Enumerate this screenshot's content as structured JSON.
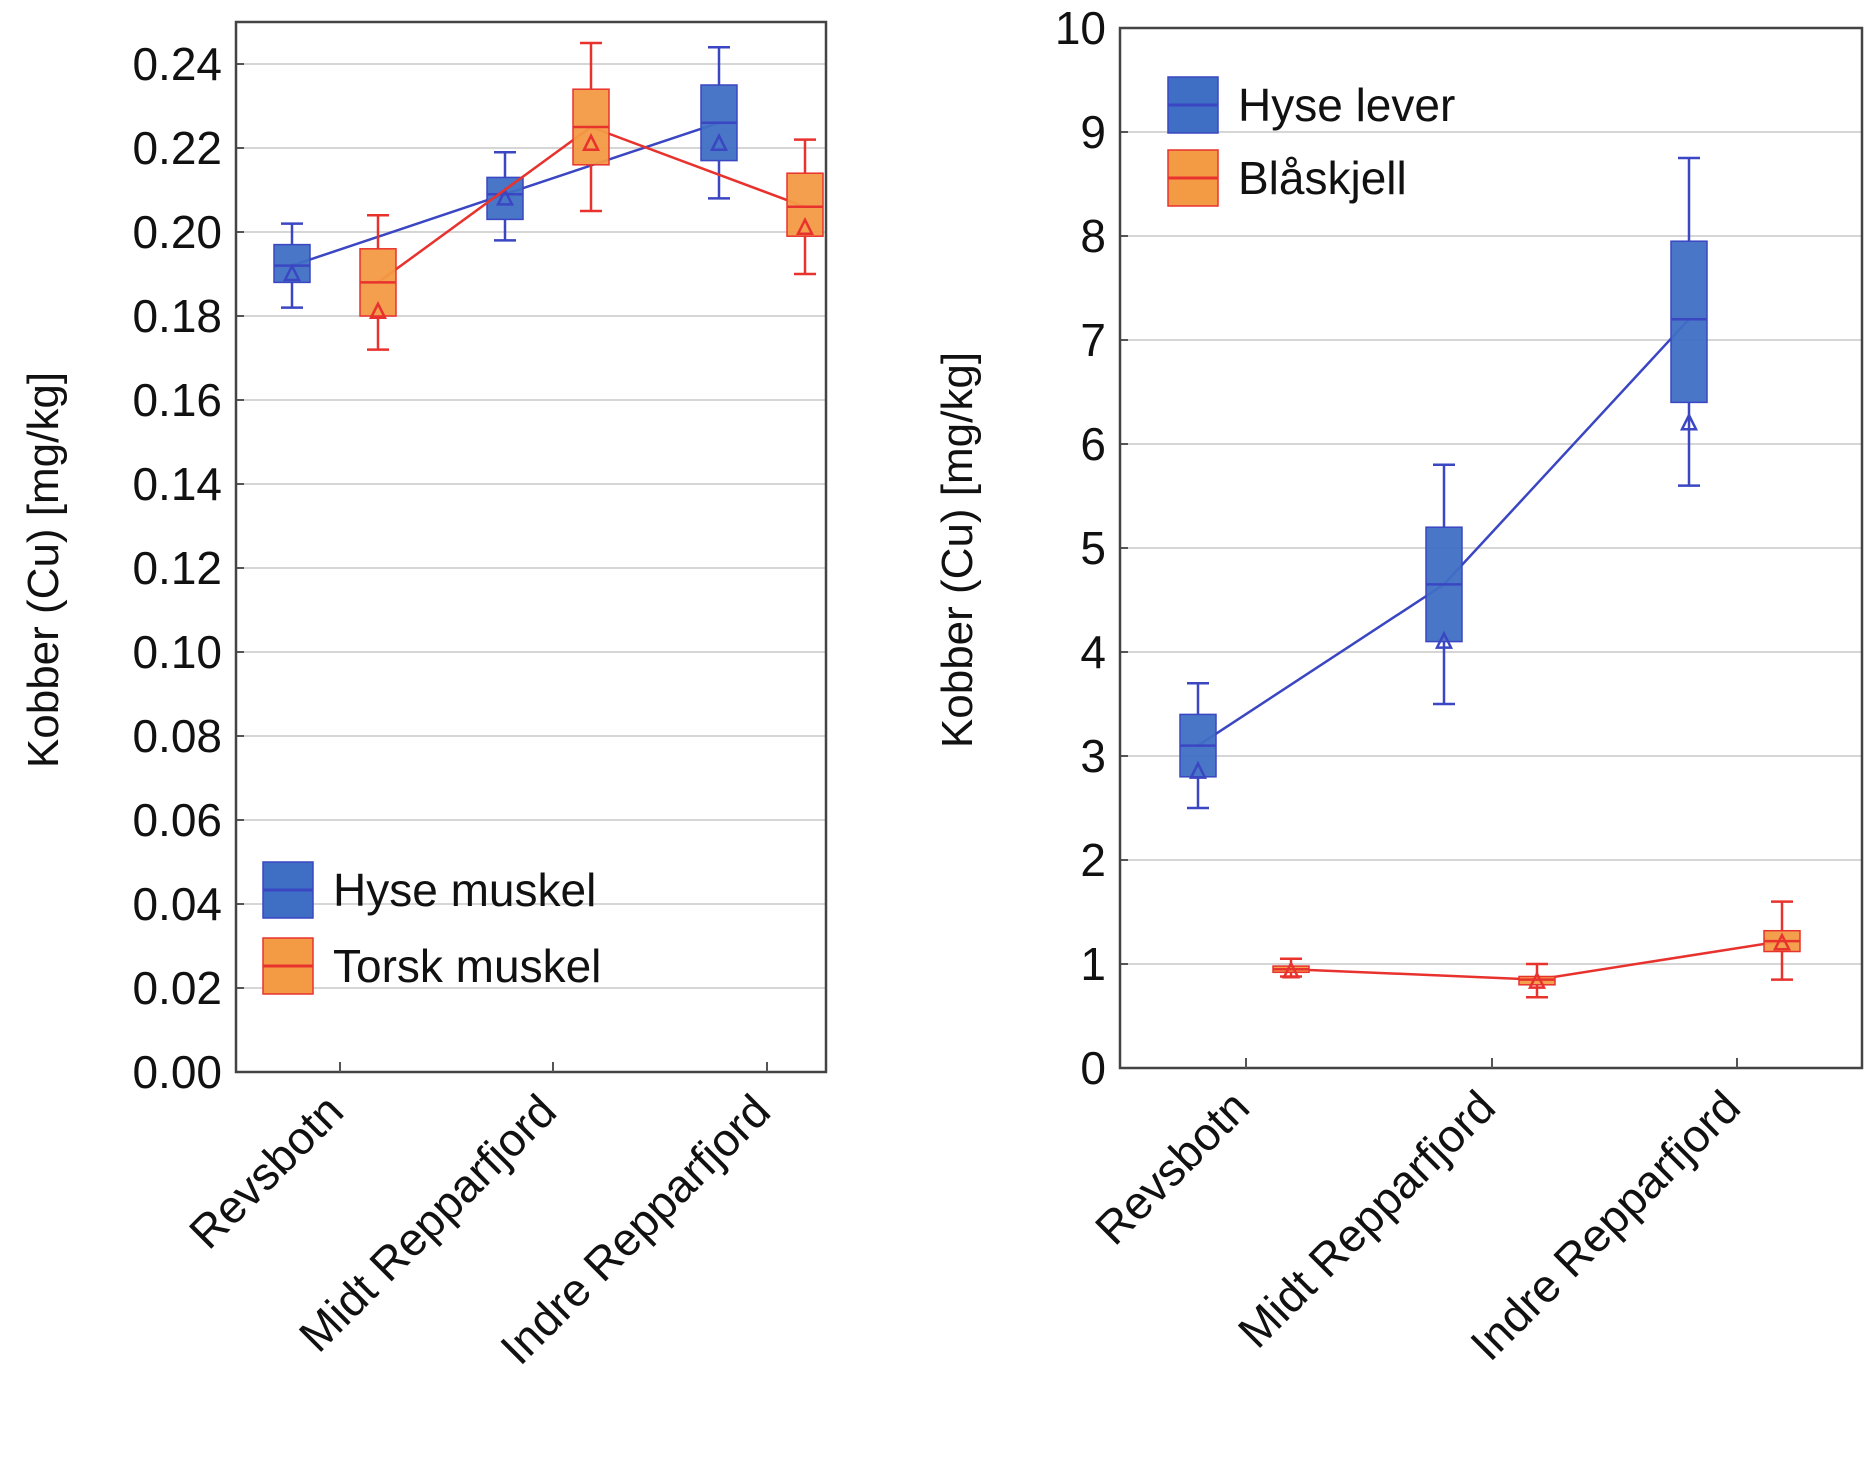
{
  "chart_data": [
    {
      "type": "box",
      "xlabel": "",
      "ylabel": "Kobber (Cu) [mg/kg]",
      "ylim": [
        0,
        0.25
      ],
      "yticks": [
        "0.00",
        "0.02",
        "0.04",
        "0.06",
        "0.08",
        "0.10",
        "0.12",
        "0.14",
        "0.16",
        "0.18",
        "0.20",
        "0.22",
        "0.24"
      ],
      "categories": [
        "Revsbotn",
        "Midt Repparfjord",
        "Indre Repparfjord"
      ],
      "grid": true,
      "legend_position": "bottom-left",
      "series": [
        {
          "name": "Hyse muskel",
          "color": "#3f6fc4",
          "line_color": "#3a46c2",
          "median": [
            0.192,
            0.209,
            0.226
          ],
          "q1": [
            0.188,
            0.203,
            0.217
          ],
          "q3": [
            0.197,
            0.213,
            0.235
          ],
          "whisker_low": [
            0.182,
            0.198,
            0.208
          ],
          "whisker_high": [
            0.202,
            0.219,
            0.244
          ],
          "mean": [
            0.19,
            0.208,
            0.221
          ]
        },
        {
          "name": "Torsk muskel",
          "color": "#f39a45",
          "line_color": "#e8322e",
          "median": [
            0.188,
            0.225,
            0.206
          ],
          "q1": [
            0.18,
            0.216,
            0.199
          ],
          "q3": [
            0.196,
            0.234,
            0.214
          ],
          "whisker_low": [
            0.172,
            0.205,
            0.19
          ],
          "whisker_high": [
            0.204,
            0.245,
            0.222
          ],
          "mean": [
            0.181,
            0.221,
            0.201
          ]
        }
      ]
    },
    {
      "type": "box",
      "xlabel": "",
      "ylabel": "Kobber (Cu) [mg/kg]",
      "ylim": [
        0,
        10
      ],
      "yticks": [
        "0",
        "1",
        "2",
        "3",
        "4",
        "5",
        "6",
        "7",
        "8",
        "9",
        "10"
      ],
      "categories": [
        "Revsbotn",
        "Midt Repparfjord",
        "Indre Repparfjord"
      ],
      "grid": true,
      "legend_position": "top-left",
      "series": [
        {
          "name": "Hyse lever",
          "color": "#3f6fc4",
          "line_color": "#3a46c2",
          "median": [
            3.1,
            4.65,
            7.2
          ],
          "q1": [
            2.8,
            4.1,
            6.4
          ],
          "q3": [
            3.4,
            5.2,
            7.95
          ],
          "whisker_low": [
            2.5,
            3.5,
            5.6
          ],
          "whisker_high": [
            3.7,
            5.8,
            8.75
          ],
          "mean": [
            2.85,
            4.1,
            6.2
          ]
        },
        {
          "name": "Blåskjell",
          "color": "#f39a45",
          "line_color": "#e8322e",
          "median": [
            0.95,
            0.85,
            1.22
          ],
          "q1": [
            0.92,
            0.8,
            1.12
          ],
          "q3": [
            0.98,
            0.88,
            1.32
          ],
          "whisker_low": [
            0.88,
            0.68,
            0.85
          ],
          "whisker_high": [
            1.05,
            1.0,
            1.6
          ],
          "mean": [
            0.93,
            0.83,
            1.2
          ]
        }
      ]
    }
  ]
}
